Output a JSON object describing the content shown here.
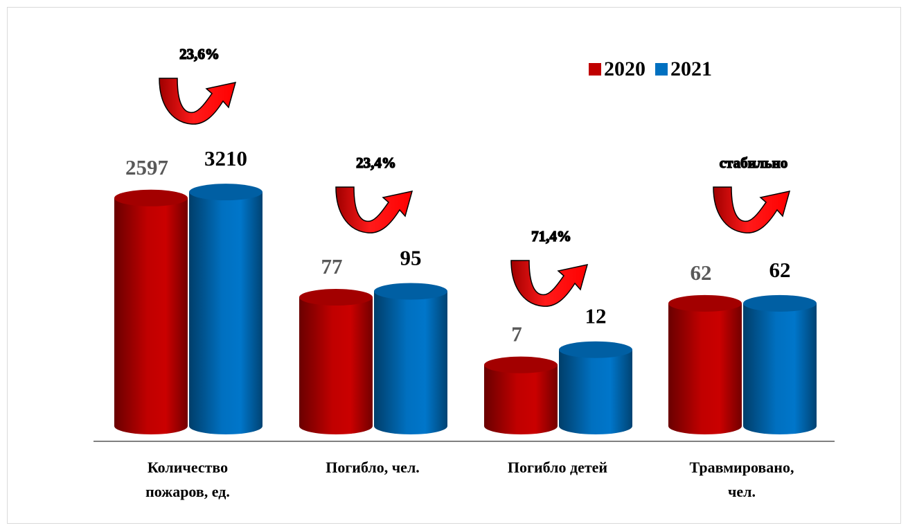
{
  "chart_data": {
    "type": "bar",
    "categories": [
      "Количество пожаров, ед.",
      "Погибло, чел.",
      "Погибло детей",
      "Травмировано, чел."
    ],
    "series": [
      {
        "name": "2020",
        "color": "#c00000",
        "values": [
          2597,
          77,
          7,
          62
        ]
      },
      {
        "name": "2021",
        "color": "#0070c0",
        "values": [
          3210,
          95,
          12,
          62
        ]
      }
    ],
    "annotations": [
      "23,6%",
      "23,4%",
      "71,4%",
      "стабильно"
    ],
    "log_scale": true,
    "ylim": [
      0.8,
      8000
    ],
    "legend": "top-right"
  }
}
